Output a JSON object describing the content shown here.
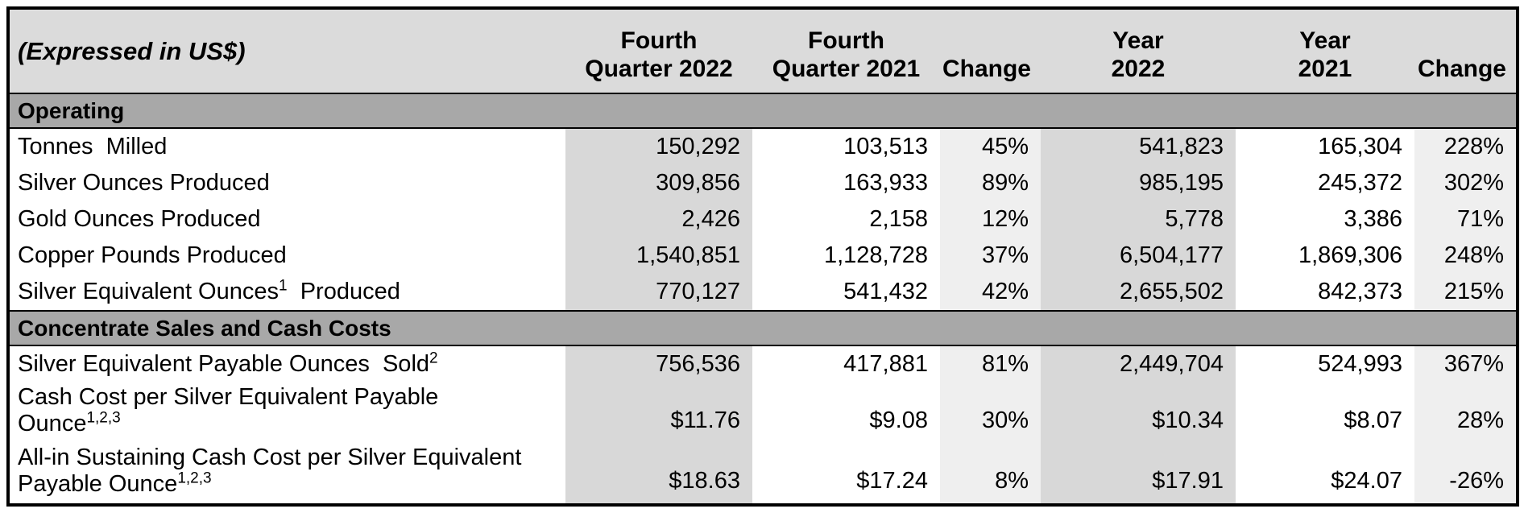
{
  "table": {
    "title_cell": "(Expressed in US$)",
    "currency_symbol": "$",
    "column_headers": [
      "Fourth\nQuarter 2022",
      "Fourth\nQuarter 2021",
      "Change",
      "Year\n2022",
      "Year\n2021",
      "Change"
    ],
    "sections": [
      {
        "title": "Operating",
        "rows": [
          {
            "label": "Tonnes  Milled",
            "sup": "",
            "after": "",
            "dollar": false,
            "values": [
              "150,292",
              "103,513",
              "45%",
              "541,823",
              "165,304",
              "228%"
            ]
          },
          {
            "label": "Silver Ounces Produced",
            "sup": "",
            "after": "",
            "dollar": false,
            "values": [
              "309,856",
              "163,933",
              "89%",
              "985,195",
              "245,372",
              "302%"
            ]
          },
          {
            "label": "Gold Ounces Produced",
            "sup": "",
            "after": "",
            "dollar": false,
            "values": [
              "2,426",
              "2,158",
              "12%",
              "5,778",
              "3,386",
              "71%"
            ]
          },
          {
            "label": "Copper Pounds Produced",
            "sup": "",
            "after": "",
            "dollar": false,
            "values": [
              "1,540,851",
              "1,128,728",
              "37%",
              "6,504,177",
              "1,869,306",
              "248%"
            ]
          },
          {
            "label": "Silver Equivalent Ounces",
            "sup": "1",
            "after": "  Produced",
            "dollar": false,
            "values": [
              "770,127",
              "541,432",
              "42%",
              "2,655,502",
              "842,373",
              "215%"
            ]
          }
        ]
      },
      {
        "title": "Concentrate Sales and Cash Costs",
        "rows": [
          {
            "label": "Silver Equivalent Payable Ounces  Sold",
            "sup": "2",
            "after": "",
            "dollar": false,
            "values": [
              "756,536",
              "417,881",
              "81%",
              "2,449,704",
              "524,993",
              "367%"
            ]
          },
          {
            "label": "Cash Cost per Silver Equivalent Payable\nOunce",
            "sup": "1,2,3",
            "after": "",
            "dollar": true,
            "values": [
              "11.76",
              "9.08",
              "30%",
              "10.34",
              "8.07",
              "28%"
            ]
          },
          {
            "label": "All-in Sustaining Cash Cost per Silver Equivalent\nPayable Ounce",
            "sup": "1,2,3",
            "after": "",
            "dollar": true,
            "values": [
              "18.63",
              "17.24",
              "8%",
              "17.91",
              "24.07",
              "-26%"
            ]
          }
        ]
      }
    ]
  },
  "colors": {
    "header_bg": "#dbdbdb",
    "section_bg": "#a8a8a8",
    "shaded_col": "#d8d8d8",
    "change_col": "#efefef",
    "border": "#000000"
  }
}
